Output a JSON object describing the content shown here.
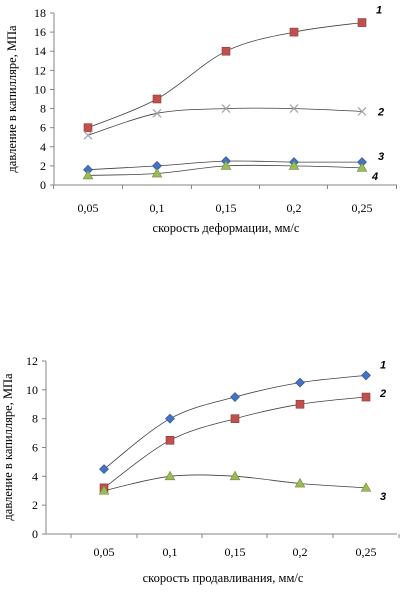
{
  "chart_data": [
    {
      "type": "scatter",
      "x_categories": [
        "0,05",
        "0,1",
        "0,15",
        "0,2",
        "0,25"
      ],
      "x": [
        0.05,
        0.1,
        0.15,
        0.2,
        0.25
      ],
      "xlabel": "скорость деформации, мм/с",
      "ylabel": "давление в капилляре, МПа",
      "ylim": [
        0,
        18
      ],
      "y_ticks": [
        "0",
        "2",
        "4",
        "6",
        "8",
        "10",
        "12",
        "14",
        "16",
        "18"
      ],
      "grid": false,
      "trendline": "smooth",
      "series": [
        {
          "name": "1",
          "marker": "square",
          "color": "#c0504d",
          "values": [
            6,
            9,
            14,
            16,
            17
          ]
        },
        {
          "name": "2",
          "marker": "x",
          "color": "#a6a6a6",
          "values": [
            5.2,
            7.5,
            8,
            8,
            7.7
          ]
        },
        {
          "name": "3",
          "marker": "diamond",
          "color": "#4472c4",
          "values": [
            1.6,
            2,
            2.5,
            2.4,
            2.4
          ]
        },
        {
          "name": "4",
          "marker": "triangle",
          "color": "#9bbb59",
          "values": [
            1,
            1.2,
            2,
            2,
            1.8
          ]
        }
      ]
    },
    {
      "type": "scatter",
      "x_categories": [
        "0,05",
        "0,1",
        "0,15",
        "0,2",
        "0,25"
      ],
      "x": [
        0.05,
        0.1,
        0.15,
        0.2,
        0.25
      ],
      "xlabel": "скорость продавливания, мм/с",
      "ylabel": "давление в капилляре, МПа",
      "ylim": [
        0,
        12
      ],
      "y_ticks": [
        "0",
        "2",
        "4",
        "6",
        "8",
        "10",
        "12"
      ],
      "grid": false,
      "trendline": "smooth",
      "series": [
        {
          "name": "1",
          "marker": "diamond",
          "color": "#4472c4",
          "values": [
            4.5,
            8,
            9.5,
            10.5,
            11
          ]
        },
        {
          "name": "2",
          "marker": "square",
          "color": "#c0504d",
          "values": [
            3.2,
            6.5,
            8,
            9,
            9.5
          ]
        },
        {
          "name": "3",
          "marker": "triangle",
          "color": "#9bbb59",
          "values": [
            3,
            4,
            4,
            3.5,
            3.2
          ]
        }
      ]
    }
  ]
}
